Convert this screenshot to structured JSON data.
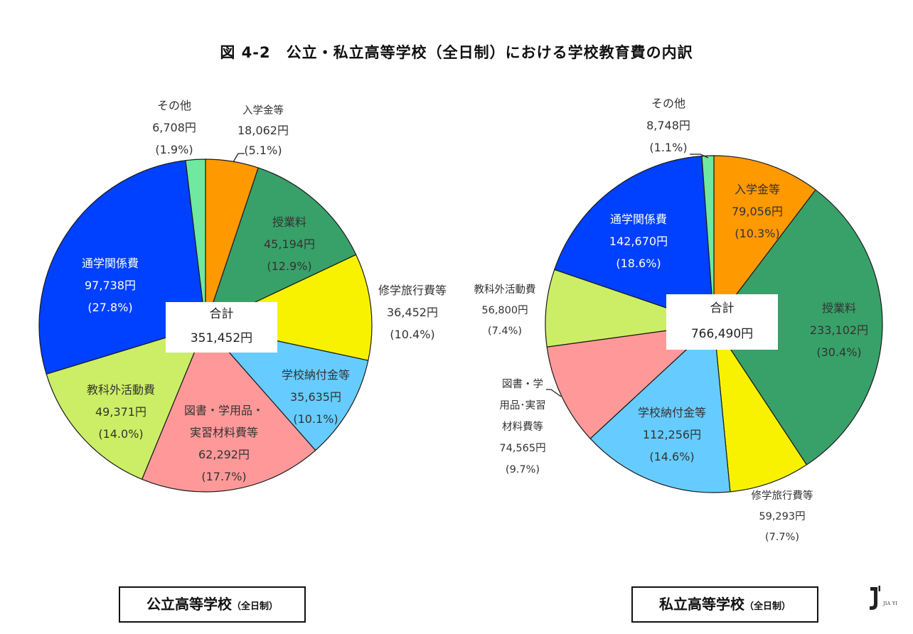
{
  "title": "図 4-2　公立・私立高等学校（全日制）における学校教育費の内訳",
  "chart_data": [
    {
      "type": "pie",
      "title": "公立高等学校（全日制）",
      "center_label": "合計",
      "total": 351452,
      "total_label": "351,452円",
      "start_angle": "top, clockwise",
      "categories": [
        "入学金等",
        "授業料",
        "修学旅行費等",
        "学校納付金等",
        "図書・学用品・実習材料費等",
        "教科外活動費",
        "通学関係費",
        "その他"
      ],
      "values": [
        18062,
        45194,
        36452,
        35635,
        62292,
        49371,
        97738,
        6708
      ],
      "percentages": [
        5.1,
        12.9,
        10.4,
        10.1,
        17.7,
        14.0,
        27.8,
        1.9
      ],
      "colors": [
        "#FF9900",
        "#38A169",
        "#F8F200",
        "#66CCFF",
        "#FF9999",
        "#CCEE66",
        "#0040FF",
        "#70E8A0"
      ]
    },
    {
      "type": "pie",
      "title": "私立高等学校（全日制）",
      "center_label": "合計",
      "total": 766490,
      "total_label": "766,490円",
      "start_angle": "top, clockwise",
      "categories": [
        "入学金等",
        "授業料",
        "修学旅行費等",
        "学校納付金等",
        "図書・学用品・実習材料費等",
        "教科外活動費",
        "通学関係費",
        "その他"
      ],
      "values": [
        79056,
        233102,
        59293,
        112256,
        74565,
        56800,
        142670,
        8748
      ],
      "percentages": [
        10.3,
        30.4,
        7.7,
        14.6,
        9.7,
        7.4,
        18.6,
        1.1
      ],
      "colors": [
        "#FF9900",
        "#38A169",
        "#F8F200",
        "#66CCFF",
        "#FF9999",
        "#CCEE66",
        "#0040FF",
        "#70E8A0"
      ]
    }
  ],
  "public": {
    "caption_main": "公立高等学校",
    "caption_sub": "（全日制）",
    "total_name": "合計",
    "total_value": "351,452円",
    "labels": {
      "nyugaku": {
        "name": "入学金等",
        "value": "18,062円",
        "pct": "(5.1%)"
      },
      "jugyo": {
        "name": "授業料",
        "value": "45,194円",
        "pct": "(12.9%)"
      },
      "shugaku": {
        "name": "修学旅行費等",
        "value": "36,452円",
        "pct": "(10.4%)"
      },
      "nofu": {
        "name": "学校納付金等",
        "value": "35,635円",
        "pct": "(10.1%)"
      },
      "tosho_1": "図書・学用品・",
      "tosho_2": "実習材料費等",
      "tosho": {
        "value": "62,292円",
        "pct": "(17.7%)"
      },
      "kyoka": {
        "name": "教科外活動費",
        "value": "49,371円",
        "pct": "(14.0%)"
      },
      "tsugaku": {
        "name": "通学関係費",
        "value": "97,738円",
        "pct": "(27.8%)"
      },
      "sonota": {
        "name": "その他",
        "value": "6,708円",
        "pct": "(1.9%)"
      }
    }
  },
  "private": {
    "caption_main": "私立高等学校",
    "caption_sub": "（全日制）",
    "total_name": "合計",
    "total_value": "766,490円",
    "labels": {
      "nyugaku": {
        "name": "入学金等",
        "value": "79,056円",
        "pct": "(10.3%)"
      },
      "jugyo": {
        "name": "授業料",
        "value": "233,102円",
        "pct": "(30.4%)"
      },
      "shugaku": {
        "name": "修学旅行費等",
        "value": "59,293円",
        "pct": "(7.7%)"
      },
      "nofu": {
        "name": "学校納付金等",
        "value": "112,256円",
        "pct": "(14.6%)"
      },
      "tosho_1": "図書・学",
      "tosho_2": "用品･実習",
      "tosho_3": "材料費等",
      "tosho": {
        "value": "74,565円",
        "pct": "(9.7%)"
      },
      "kyoka": {
        "name": "教科外活動費",
        "value": "56,800円",
        "pct": "(7.4%)"
      },
      "tsugaku": {
        "name": "通学関係費",
        "value": "142,670円",
        "pct": "(18.6%)"
      },
      "sonota": {
        "name": "その他",
        "value": "8,748円",
        "pct": "(1.1%)"
      }
    }
  },
  "logo": {
    "text": "JIA YI"
  }
}
